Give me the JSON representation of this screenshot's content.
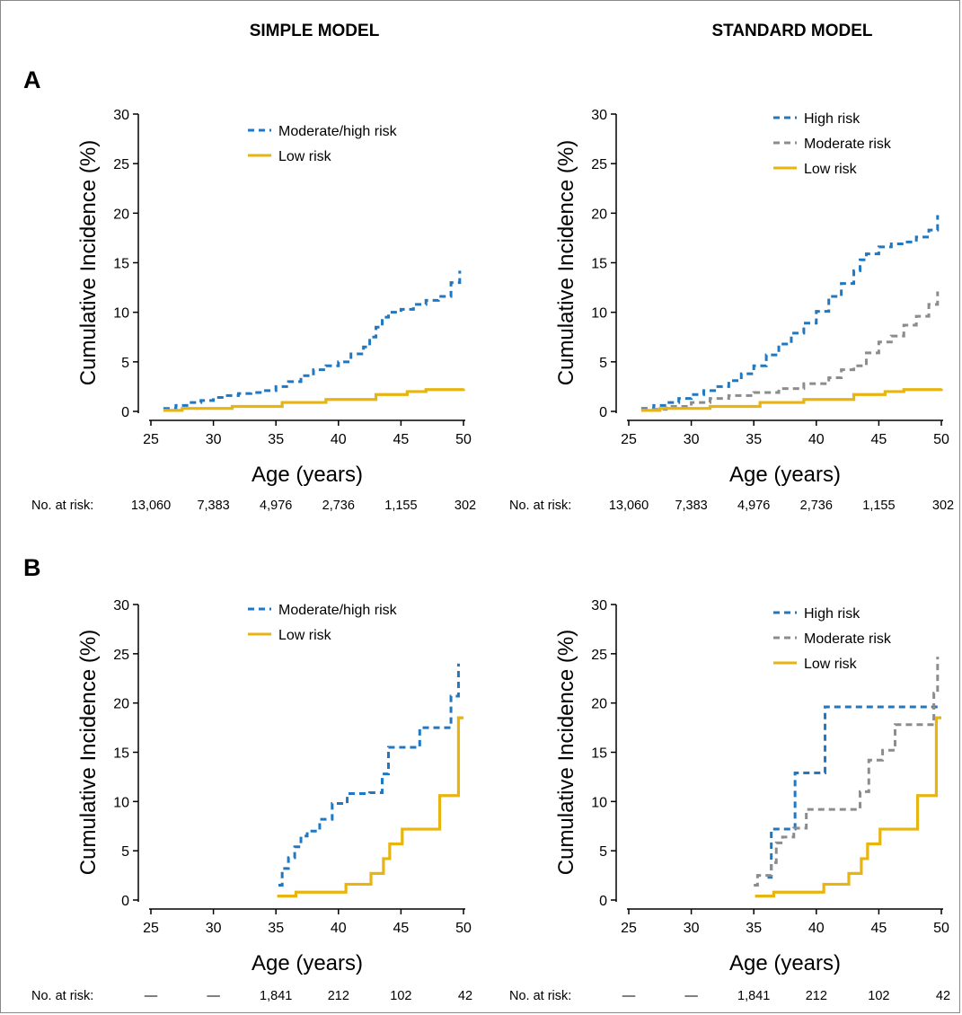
{
  "figure": {
    "column_titles": [
      "SIMPLE MODEL",
      "STANDARD MODEL"
    ],
    "row_labels": [
      "A",
      "B"
    ],
    "risk_label": "No. at risk:"
  },
  "colors": {
    "high": "#1f78c1",
    "moderate": "#8c8c8c",
    "low": "#e8b40f"
  },
  "chart_data": [
    {
      "panel": "A-simple",
      "type": "line",
      "step": true,
      "xlabel": "Age (years)",
      "ylabel": "Cumulative Incidence (%)",
      "xlim": [
        25,
        50
      ],
      "ylim": [
        0,
        30
      ],
      "xticks": [
        25,
        30,
        35,
        40,
        45,
        50
      ],
      "yticks": [
        0,
        5,
        10,
        15,
        20,
        25,
        30
      ],
      "at_risk": [
        "13,060",
        "7,383",
        "4,976",
        "2,736",
        "1,155",
        "302"
      ],
      "series": [
        {
          "name": "Moderate/high risk",
          "style": "dashed",
          "color_key": "high",
          "x": [
            26,
            27,
            28,
            29,
            30,
            31,
            32,
            33,
            34,
            35,
            36,
            37,
            38,
            39,
            40,
            41,
            42,
            42.5,
            43,
            43.5,
            44,
            45,
            46,
            47,
            48,
            49,
            49.7
          ],
          "y": [
            0.3,
            0.6,
            0.9,
            1.1,
            1.4,
            1.6,
            1.8,
            1.9,
            2.1,
            2.5,
            3.0,
            3.6,
            4.2,
            4.6,
            5.0,
            5.8,
            6.5,
            7.5,
            8.5,
            9.5,
            10.0,
            10.3,
            10.8,
            11.2,
            11.6,
            13.0,
            14.2
          ]
        },
        {
          "name": "Low risk",
          "style": "solid",
          "color_key": "low",
          "x": [
            26,
            27.5,
            31.5,
            35.5,
            39,
            43,
            45.5,
            47,
            50
          ],
          "y": [
            0.1,
            0.3,
            0.5,
            0.9,
            1.2,
            1.7,
            2.0,
            2.2,
            2.3
          ]
        }
      ]
    },
    {
      "panel": "A-standard",
      "type": "line",
      "step": true,
      "xlabel": "Age (years)",
      "ylabel": "Cumulative Incidence (%)",
      "xlim": [
        25,
        50
      ],
      "ylim": [
        0,
        30
      ],
      "xticks": [
        25,
        30,
        35,
        40,
        45,
        50
      ],
      "yticks": [
        0,
        5,
        10,
        15,
        20,
        25,
        30
      ],
      "at_risk": [
        "13,060",
        "7,383",
        "4,976",
        "2,736",
        "1,155",
        "302"
      ],
      "series": [
        {
          "name": "High risk",
          "style": "dashed",
          "color_key": "high",
          "x": [
            26,
            27,
            28,
            29,
            30,
            31,
            32,
            33,
            34,
            35,
            36,
            37,
            38,
            39,
            40,
            41,
            42,
            43,
            43.5,
            44,
            45,
            46,
            47,
            48,
            49,
            49.7
          ],
          "y": [
            0.3,
            0.6,
            0.9,
            1.3,
            1.7,
            2.1,
            2.5,
            3.1,
            3.8,
            4.6,
            5.7,
            6.8,
            7.9,
            8.9,
            10.1,
            11.6,
            12.9,
            14.2,
            15.3,
            15.9,
            16.6,
            16.9,
            17.1,
            17.6,
            18.3,
            19.8
          ]
        },
        {
          "name": "Moderate risk",
          "style": "dashed",
          "color_key": "moderate",
          "x": [
            26,
            28,
            30,
            31.5,
            33,
            35,
            37,
            39,
            41,
            42,
            43,
            44,
            45,
            46,
            47,
            48,
            49,
            49.7
          ],
          "y": [
            0.2,
            0.5,
            0.9,
            1.3,
            1.6,
            1.9,
            2.3,
            2.8,
            3.4,
            4.2,
            4.6,
            5.9,
            7.0,
            7.6,
            8.7,
            9.6,
            10.8,
            12.1
          ]
        },
        {
          "name": "Low risk",
          "style": "solid",
          "color_key": "low",
          "x": [
            26,
            27.5,
            31.5,
            35.5,
            39,
            43,
            45.5,
            47,
            50
          ],
          "y": [
            0.1,
            0.3,
            0.5,
            0.9,
            1.2,
            1.7,
            2.0,
            2.2,
            2.3
          ]
        }
      ]
    },
    {
      "panel": "B-simple",
      "type": "line",
      "step": true,
      "xlabel": "Age (years)",
      "ylabel": "Cumulative Incidence (%)",
      "xlim": [
        25,
        50
      ],
      "ylim": [
        0,
        30
      ],
      "xticks": [
        25,
        30,
        35,
        40,
        45,
        50
      ],
      "yticks": [
        0,
        5,
        10,
        15,
        20,
        25,
        30
      ],
      "at_risk": [
        "—",
        "—",
        "1,841",
        "212",
        "102",
        "42"
      ],
      "series": [
        {
          "name": "Moderate/high risk",
          "style": "dashed",
          "color_key": "high",
          "x": [
            35.2,
            35.5,
            36,
            36.5,
            37,
            37.5,
            38.5,
            39.5,
            40.7,
            42.5,
            43.5,
            44,
            45.5,
            46.5,
            48,
            49,
            49.6
          ],
          "y": [
            1.5,
            3.2,
            4.3,
            5.4,
            6.5,
            7.0,
            8.2,
            9.8,
            10.8,
            10.9,
            12.8,
            15.5,
            15.5,
            17.5,
            17.5,
            20.7,
            24.0
          ]
        },
        {
          "name": "Low risk",
          "style": "solid",
          "color_key": "low",
          "x": [
            35.1,
            36.6,
            40.6,
            42.6,
            43.6,
            44.1,
            45.1,
            48.1,
            49.6,
            50
          ],
          "y": [
            0.4,
            0.8,
            1.6,
            2.7,
            4.2,
            5.7,
            7.2,
            10.6,
            18.5,
            18.5
          ]
        }
      ]
    },
    {
      "panel": "B-standard",
      "type": "line",
      "step": true,
      "xlabel": "Age (years)",
      "ylabel": "Cumulative Incidence (%)",
      "xlim": [
        25,
        50
      ],
      "ylim": [
        0,
        30
      ],
      "xticks": [
        25,
        30,
        35,
        40,
        45,
        50
      ],
      "yticks": [
        0,
        5,
        10,
        15,
        20,
        25,
        30
      ],
      "at_risk": [
        "—",
        "—",
        "1,841",
        "212",
        "102",
        "42"
      ],
      "series": [
        {
          "name": "High risk",
          "style": "dashed",
          "color_key": "high",
          "x": [
            36.1,
            36.4,
            38.3,
            40.7,
            50
          ],
          "y": [
            2.3,
            7.2,
            12.9,
            19.6,
            19.6
          ]
        },
        {
          "name": "Moderate risk",
          "style": "dashed",
          "color_key": "moderate",
          "x": [
            35,
            35.3,
            36.4,
            36.8,
            37.3,
            38.2,
            39.2,
            42.8,
            43.5,
            44.2,
            45.3,
            46.3,
            47.5,
            49,
            49.4,
            49.7
          ],
          "y": [
            1.5,
            2.5,
            3.8,
            5.8,
            6.4,
            7.3,
            9.2,
            9.2,
            11.0,
            14.2,
            15.2,
            17.8,
            17.8,
            17.8,
            21.0,
            24.7
          ]
        },
        {
          "name": "Low risk",
          "style": "solid",
          "color_key": "low",
          "x": [
            35.1,
            36.6,
            40.6,
            42.6,
            43.6,
            44.1,
            45.1,
            48.1,
            49.6,
            50
          ],
          "y": [
            0.4,
            0.8,
            1.6,
            2.7,
            4.2,
            5.7,
            7.2,
            10.6,
            18.5,
            18.5
          ]
        }
      ]
    }
  ]
}
